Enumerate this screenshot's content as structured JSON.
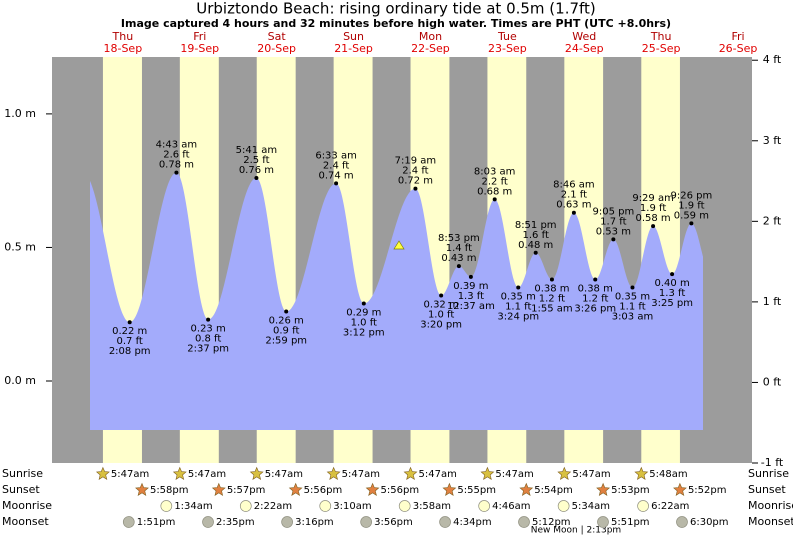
{
  "chart_data": {
    "type": "area",
    "title": "Urbiztondo Beach: rising  ordinary tide at 0.5m (1.7ft)",
    "subtitle": "Image captured 4 hours and 32 minutes before high water. Times are PHT (UTC +8.0hrs)",
    "days": [
      {
        "name": "Thu",
        "date": "18-Sep"
      },
      {
        "name": "Fri",
        "date": "19-Sep"
      },
      {
        "name": "Sat",
        "date": "20-Sep"
      },
      {
        "name": "Sun",
        "date": "21-Sep"
      },
      {
        "name": "Mon",
        "date": "22-Sep"
      },
      {
        "name": "Tue",
        "date": "23-Sep"
      },
      {
        "name": "Wed",
        "date": "24-Sep"
      },
      {
        "name": "Thu",
        "date": "25-Sep"
      },
      {
        "name": "Fri",
        "date": "26-Sep"
      }
    ],
    "ylim": [
      -0.307,
      1.213
    ],
    "yticks": [
      {
        "value": 1.0,
        "label": "1.0 m"
      },
      {
        "value": 0.5,
        "label": "0.5 m"
      },
      {
        "value": 0,
        "label": "0.0 m"
      }
    ],
    "y2lim": [
      -1,
      4.04
    ],
    "y2ticks": [
      {
        "value": 4,
        "label": "4 ft"
      },
      {
        "value": 3,
        "label": "3 ft"
      },
      {
        "value": 2,
        "label": "2 ft"
      },
      {
        "value": 1,
        "label": "1 ft"
      },
      {
        "value": 0,
        "label": "0 ft"
      },
      {
        "value": -1,
        "label": "-1 ft"
      }
    ],
    "color": "#a3abfb",
    "day_color": "#ffffcc",
    "night_color": "#9c9c9c",
    "tides": {
      "times": [
        "2:08 pm",
        "4:43 am",
        "2:37 pm",
        "5:41 am",
        "2:59 pm",
        "6:33 am",
        "3:12 pm",
        "7:19 am",
        "3:20 pm",
        "8:53 pm",
        "12:37 am",
        "8:03 am",
        "3:24 pm",
        "8:51 pm",
        "1:55 am",
        "8:46 am",
        "3:26 pm",
        "9:05 pm",
        "3:03 am",
        "9:29 am",
        "3:25 pm",
        "9:26 pm"
      ],
      "values": [
        0.22,
        0.78,
        0.23,
        0.76,
        0.26,
        0.74,
        0.29,
        0.72,
        0.32,
        0.43,
        0.39,
        0.68,
        0.35,
        0.48,
        0.38,
        0.63,
        0.38,
        0.53,
        0.35,
        0.58,
        0.4,
        0.59
      ],
      "value_labels": [
        "0.22 m",
        "0.78 m",
        "0.23 m",
        "0.76 m",
        "0.26 m",
        "0.74 m",
        "0.29 m",
        "0.72 m",
        "0.32 m",
        "0.43 m",
        "0.39 m",
        "0.68 m",
        "0.35 m",
        "0.48 m",
        "0.38 m",
        "0.63 m",
        "0.38 m",
        "0.53 m",
        "0.35 m",
        "0.58 m",
        "0.40 m",
        "0.59 m"
      ],
      "ft_labels": [
        "0.7 ft",
        "2.6 ft",
        "0.8 ft",
        "2.5 ft",
        "0.9 ft",
        "2.4 ft",
        "1.0 ft",
        "2.4 ft",
        "1.0 ft",
        "1.4 ft",
        "1.3 ft",
        "2.2 ft",
        "1.1 ft",
        "1.6 ft",
        "1.2 ft",
        "2.1 ft",
        "1.2 ft",
        "1.7 ft",
        "1.1 ft",
        "1.9 ft",
        "1.3 ft",
        "1.9 ft"
      ]
    },
    "sun_moon": [
      {
        "name": "Sunrise",
        "times": [
          "5:47am",
          "5:47am",
          "5:47am",
          "5:47am",
          "5:47am",
          "5:47am",
          "5:47am",
          "5:48am"
        ]
      },
      {
        "name": "Sunset",
        "times": [
          "5:58pm",
          "5:57pm",
          "5:56pm",
          "5:56pm",
          "5:55pm",
          "5:54pm",
          "5:53pm",
          "5:52pm"
        ]
      },
      {
        "name": "Moonrise",
        "times": [
          null,
          "1:34am",
          "2:22am",
          "3:10am",
          "3:58am",
          "4:46am",
          "5:34am",
          "6:22am"
        ]
      },
      {
        "name": "Moonset",
        "times": [
          "1:51pm",
          "2:35pm",
          "3:16pm",
          "3:56pm",
          "4:34pm",
          "5:12pm",
          "5:51pm",
          "6:30pm"
        ]
      }
    ],
    "moon_phase": "New Moon | 2:13pm"
  }
}
